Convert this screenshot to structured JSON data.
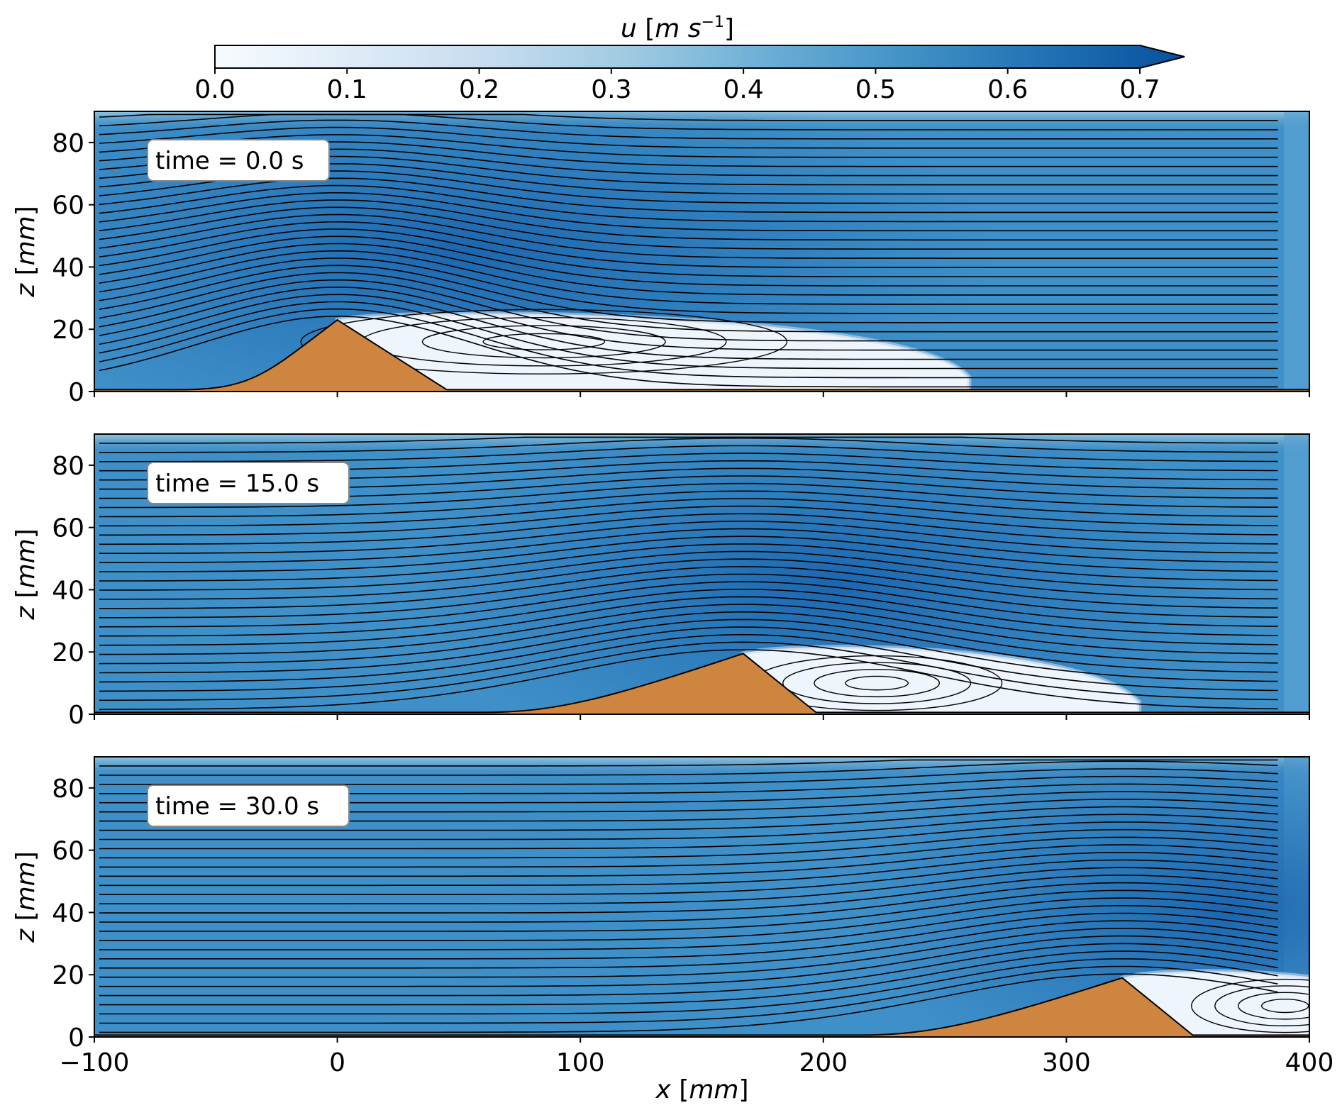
{
  "chart_data": {
    "type": "heatmap",
    "description_free": true,
    "colorbar": {
      "label_var": "u",
      "label_units": "m s",
      "label_units_exp": "−1",
      "ticks": [
        "0.0",
        "0.1",
        "0.2",
        "0.3",
        "0.4",
        "0.5",
        "0.6",
        "0.7"
      ],
      "range": [
        0.0,
        0.7
      ],
      "extend": "max",
      "cmap_stops": [
        "#f7fbff",
        "#deebf7",
        "#c6dbef",
        "#9ecae1",
        "#6baed6",
        "#4292c6",
        "#2171b5",
        "#08519c"
      ]
    },
    "x_axis": {
      "label_var": "x",
      "label_units": "mm",
      "range": [
        -100,
        400
      ],
      "ticks": [
        -100,
        0,
        100,
        200,
        300,
        400
      ],
      "tick_labels": [
        "−100",
        "0",
        "100",
        "200",
        "300",
        "400"
      ]
    },
    "y_axis": {
      "label_var": "z",
      "label_units": "mm",
      "range": [
        0,
        90
      ],
      "ticks": [
        0,
        20,
        40,
        60,
        80
      ],
      "tick_labels": [
        "0",
        "20",
        "40",
        "60",
        "80"
      ]
    },
    "panels": [
      {
        "time_label": "time = 0.0 s",
        "dune": {
          "x_start": -45,
          "crest_x": 0,
          "crest_z": 23,
          "x_end": 45
        },
        "vortex": {
          "x": 85,
          "z": 16
        },
        "recirculation_end_x": 200
      },
      {
        "time_label": "time = 15.0 s",
        "dune": {
          "x_start": 80,
          "crest_x": 167,
          "crest_z": 19.5,
          "x_end": 197
        },
        "vortex": {
          "x": 222,
          "z": 10
        },
        "recirculation_end_x": 270
      },
      {
        "time_label": "time = 30.0 s",
        "dune": {
          "x_start": 235,
          "crest_x": 323,
          "crest_z": 19,
          "x_end": 352
        },
        "vortex": {
          "x": 390,
          "z": 10
        },
        "recirculation_end_x": 400
      }
    ],
    "streamlines_per_panel": 30
  }
}
